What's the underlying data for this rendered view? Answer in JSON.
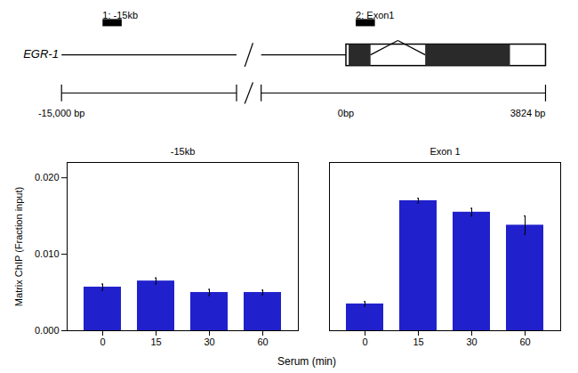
{
  "chart_data": {
    "type": "bar",
    "categories": [
      "0",
      "15",
      "30",
      "60"
    ],
    "series": [
      {
        "name": "-15kb",
        "color": "#2020CC",
        "values": [
          0.0057,
          0.0065,
          0.005,
          0.005
        ],
        "errors": [
          0.0004,
          0.0004,
          0.0004,
          0.0003
        ]
      },
      {
        "name": "Exon 1",
        "color": "#2020CC",
        "values": [
          0.0035,
          0.017,
          0.0155,
          0.0138
        ],
        "errors": [
          0.0003,
          0.0003,
          0.0005,
          0.0012
        ]
      }
    ],
    "xlabel": "Serum (min)",
    "ylabel": "Matrix ChIP (Fraction input)",
    "ylim": [
      0,
      0.022
    ],
    "yticks": [
      {
        "value": 0,
        "label": "0.000"
      },
      {
        "value": 0.01,
        "label": "0.010"
      },
      {
        "value": 0.02,
        "label": "0.020"
      }
    ],
    "annotations": [
      "EGR-1",
      "1: -15kb",
      "2: Exon1",
      "-15,000 bp",
      "0bp",
      "3824 bp"
    ]
  }
}
